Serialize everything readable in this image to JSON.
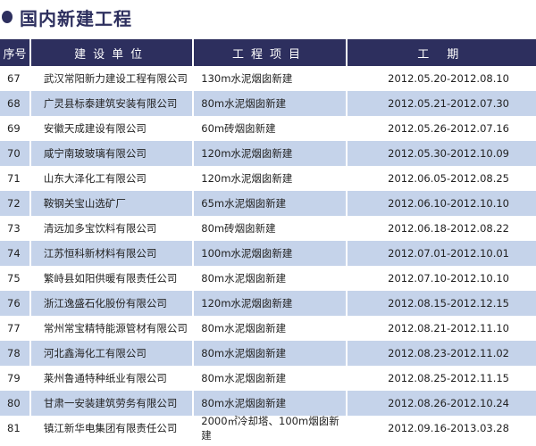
{
  "title": "国内新建工程",
  "columns": [
    "序号",
    "建设单位",
    "工程项目",
    "工 期"
  ],
  "rows": [
    {
      "no": "67",
      "company": "武汉常阳新力建设工程有限公司",
      "project": "130m水泥烟囱新建",
      "period": "2012.05.20-2012.08.10"
    },
    {
      "no": "68",
      "company": "广灵县标泰建筑安装有限公司",
      "project": "80m水泥烟囱新建",
      "period": "2012.05.21-2012.07.30"
    },
    {
      "no": "69",
      "company": "安徽天成建设有限公司",
      "project": "60m砖烟囱新建",
      "period": "2012.05.26-2012.07.16"
    },
    {
      "no": "70",
      "company": "咸宁南玻玻璃有限公司",
      "project": "120m水泥烟囱新建",
      "period": "2012.05.30-2012.10.09"
    },
    {
      "no": "71",
      "company": "山东大泽化工有限公司",
      "project": "120m水泥烟囱新建",
      "period": "2012.06.05-2012.08.25"
    },
    {
      "no": "72",
      "company": "鞍钢关宝山选矿厂",
      "project": "65m水泥烟囱新建",
      "period": "2012.06.10-2012.10.10"
    },
    {
      "no": "73",
      "company": "清远加多宝饮料有限公司",
      "project": "80m砖烟囱新建",
      "period": "2012.06.18-2012.08.22"
    },
    {
      "no": "74",
      "company": "江苏恒科新材料有限公司",
      "project": "100m水泥烟囱新建",
      "period": "2012.07.01-2012.10.01"
    },
    {
      "no": "75",
      "company": "繁峙县如阳供暖有限责任公司",
      "project": "80m水泥烟囱新建",
      "period": "2012.07.10-2012.10.10"
    },
    {
      "no": "76",
      "company": "浙江逸盛石化股份有限公司",
      "project": "120m水泥烟囱新建",
      "period": "2012.08.15-2012.12.15"
    },
    {
      "no": "77",
      "company": "常州常宝精特能源管材有限公司",
      "project": "80m水泥烟囱新建",
      "period": "2012.08.21-2012.11.10"
    },
    {
      "no": "78",
      "company": "河北鑫海化工有限公司",
      "project": "80m水泥烟囱新建",
      "period": "2012.08.23-2012.11.02"
    },
    {
      "no": "79",
      "company": "莱州鲁通特种纸业有限公司",
      "project": "80m水泥烟囱新建",
      "period": "2012.08.25-2012.11.15"
    },
    {
      "no": "80",
      "company": "甘肃一安装建筑劳务有限公司",
      "project": "80m水泥烟囱新建",
      "period": "2012.08.26-2012.10.24"
    },
    {
      "no": "81",
      "company": "镇江新华电集团有限责任公司",
      "project": "2000㎡冷却塔、100m烟囱新建",
      "period": "2012.09.16-2013.03.28"
    }
  ],
  "colors": {
    "header": "#2d2f5e",
    "stripe": "#c5d3ea"
  }
}
